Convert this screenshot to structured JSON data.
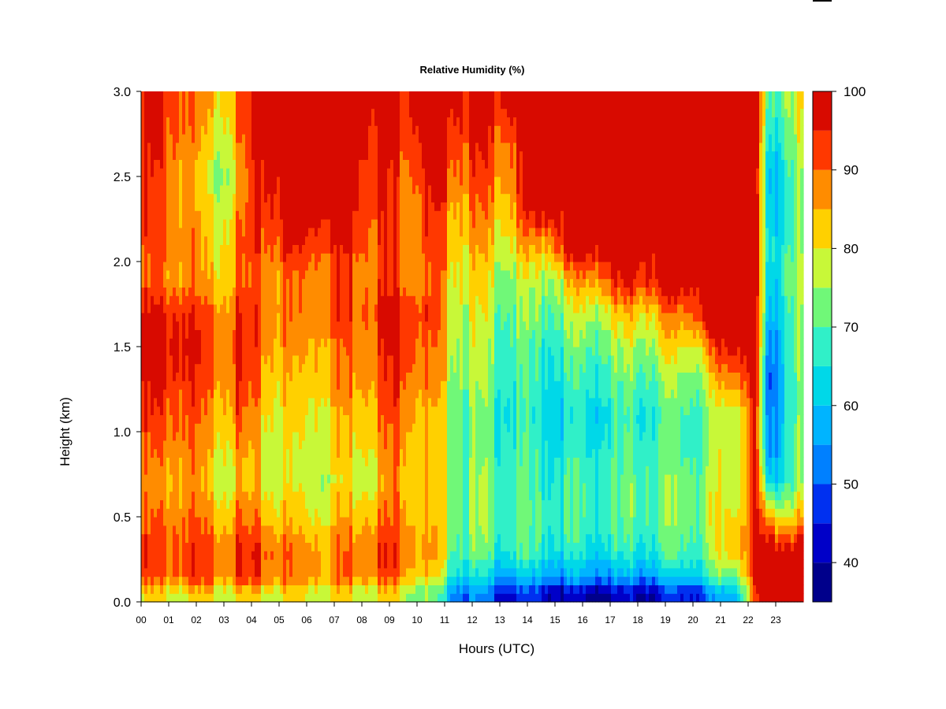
{
  "chart_data": {
    "type": "heatmap",
    "title": "Relative Humidity (%)",
    "xlabel": "Hours (UTC)",
    "ylabel": "Height (km)",
    "xlim": [
      0,
      24
    ],
    "ylim": [
      0.0,
      3.0
    ],
    "x_ticks": [
      "00",
      "01",
      "02",
      "03",
      "04",
      "05",
      "06",
      "07",
      "08",
      "09",
      "10",
      "11",
      "12",
      "13",
      "14",
      "15",
      "16",
      "17",
      "18",
      "19",
      "20",
      "21",
      "22",
      "23"
    ],
    "y_ticks": [
      "0.0",
      "0.5",
      "1.0",
      "1.5",
      "2.0",
      "2.5",
      "3.0"
    ],
    "x_centers": [
      0.5,
      1.5,
      2.5,
      3.5,
      4.5,
      5.5,
      6.5,
      7.5,
      8.5,
      9.5,
      10.5,
      11.5,
      12.5,
      13.5,
      14.5,
      15.5,
      16.5,
      17.5,
      18.5,
      19.5,
      20.5,
      21.5,
      22.25,
      22.75,
      23.5
    ],
    "y_centers": [
      0.05,
      0.15,
      0.3,
      0.5,
      0.7,
      0.9,
      1.1,
      1.3,
      1.5,
      1.7,
      1.9,
      2.1,
      2.3,
      2.5,
      2.7,
      2.9
    ],
    "values": [
      [
        80,
        80,
        80,
        80,
        80,
        80,
        80,
        80,
        80,
        80,
        70,
        55,
        50,
        45,
        45,
        40,
        40,
        40,
        42,
        45,
        50,
        60,
        90,
        100,
        100
      ],
      [
        90,
        92,
        90,
        92,
        90,
        88,
        88,
        90,
        92,
        90,
        80,
        65,
        60,
        58,
        58,
        55,
        55,
        55,
        58,
        60,
        65,
        75,
        92,
        100,
        100
      ],
      [
        92,
        92,
        90,
        93,
        92,
        88,
        88,
        90,
        93,
        92,
        85,
        72,
        70,
        68,
        68,
        65,
        65,
        65,
        68,
        70,
        72,
        85,
        95,
        100,
        100
      ],
      [
        88,
        90,
        85,
        88,
        85,
        82,
        82,
        85,
        88,
        90,
        82,
        75,
        72,
        70,
        70,
        68,
        68,
        70,
        72,
        72,
        75,
        82,
        95,
        82,
        82
      ],
      [
        85,
        88,
        80,
        82,
        80,
        78,
        78,
        80,
        82,
        88,
        80,
        75,
        72,
        70,
        68,
        68,
        68,
        70,
        72,
        72,
        74,
        80,
        95,
        60,
        72
      ],
      [
        88,
        90,
        82,
        85,
        80,
        78,
        80,
        82,
        85,
        90,
        80,
        74,
        70,
        68,
        66,
        65,
        66,
        68,
        70,
        70,
        72,
        80,
        95,
        50,
        72
      ],
      [
        92,
        92,
        85,
        90,
        82,
        80,
        82,
        85,
        88,
        92,
        82,
        74,
        70,
        66,
        64,
        64,
        64,
        66,
        68,
        70,
        72,
        78,
        95,
        48,
        70
      ],
      [
        95,
        95,
        88,
        92,
        85,
        82,
        85,
        88,
        90,
        95,
        85,
        76,
        72,
        68,
        66,
        66,
        68,
        70,
        72,
        74,
        76,
        90,
        100,
        45,
        70
      ],
      [
        98,
        98,
        90,
        95,
        88,
        85,
        88,
        90,
        92,
        98,
        88,
        78,
        74,
        70,
        68,
        70,
        72,
        74,
        78,
        80,
        85,
        100,
        100,
        48,
        72
      ],
      [
        95,
        95,
        88,
        92,
        90,
        88,
        90,
        92,
        95,
        98,
        90,
        80,
        76,
        72,
        72,
        75,
        78,
        82,
        85,
        88,
        100,
        100,
        100,
        55,
        72
      ],
      [
        88,
        88,
        82,
        88,
        88,
        88,
        90,
        92,
        92,
        92,
        88,
        82,
        78,
        75,
        76,
        82,
        90,
        95,
        98,
        100,
        100,
        100,
        100,
        58,
        75
      ],
      [
        90,
        90,
        80,
        88,
        92,
        95,
        95,
        95,
        92,
        92,
        90,
        85,
        82,
        82,
        85,
        100,
        100,
        100,
        100,
        100,
        100,
        100,
        100,
        60,
        72
      ],
      [
        92,
        88,
        78,
        85,
        95,
        100,
        100,
        100,
        95,
        92,
        92,
        88,
        86,
        86,
        100,
        100,
        100,
        100,
        100,
        100,
        100,
        100,
        100,
        58,
        72
      ],
      [
        92,
        88,
        75,
        82,
        98,
        100,
        100,
        100,
        95,
        92,
        95,
        92,
        90,
        90,
        100,
        100,
        100,
        100,
        100,
        100,
        100,
        100,
        100,
        55,
        72
      ],
      [
        95,
        90,
        78,
        85,
        100,
        100,
        100,
        100,
        98,
        95,
        100,
        95,
        92,
        92,
        100,
        100,
        100,
        100,
        100,
        100,
        100,
        100,
        100,
        60,
        75
      ],
      [
        95,
        92,
        82,
        88,
        100,
        100,
        100,
        100,
        100,
        98,
        100,
        100,
        95,
        100,
        100,
        100,
        100,
        100,
        100,
        100,
        100,
        100,
        100,
        65,
        78
      ]
    ],
    "colorbar": {
      "levels": [
        35,
        40,
        45,
        50,
        55,
        60,
        65,
        70,
        75,
        80,
        85,
        90,
        95,
        100
      ],
      "colors": [
        "#00008b",
        "#0000c8",
        "#0030f0",
        "#0080ff",
        "#00b4ff",
        "#00d8e8",
        "#30f0c8",
        "#70f878",
        "#c8f838",
        "#ffd000",
        "#ff8c00",
        "#ff3800",
        "#d80a00",
        "#800000"
      ],
      "tick_labels": [
        "40",
        "50",
        "60",
        "70",
        "80",
        "90",
        "100"
      ],
      "tick_values": [
        40,
        50,
        60,
        70,
        80,
        90,
        100
      ]
    },
    "grid": false,
    "legend": "colorbar-right"
  }
}
